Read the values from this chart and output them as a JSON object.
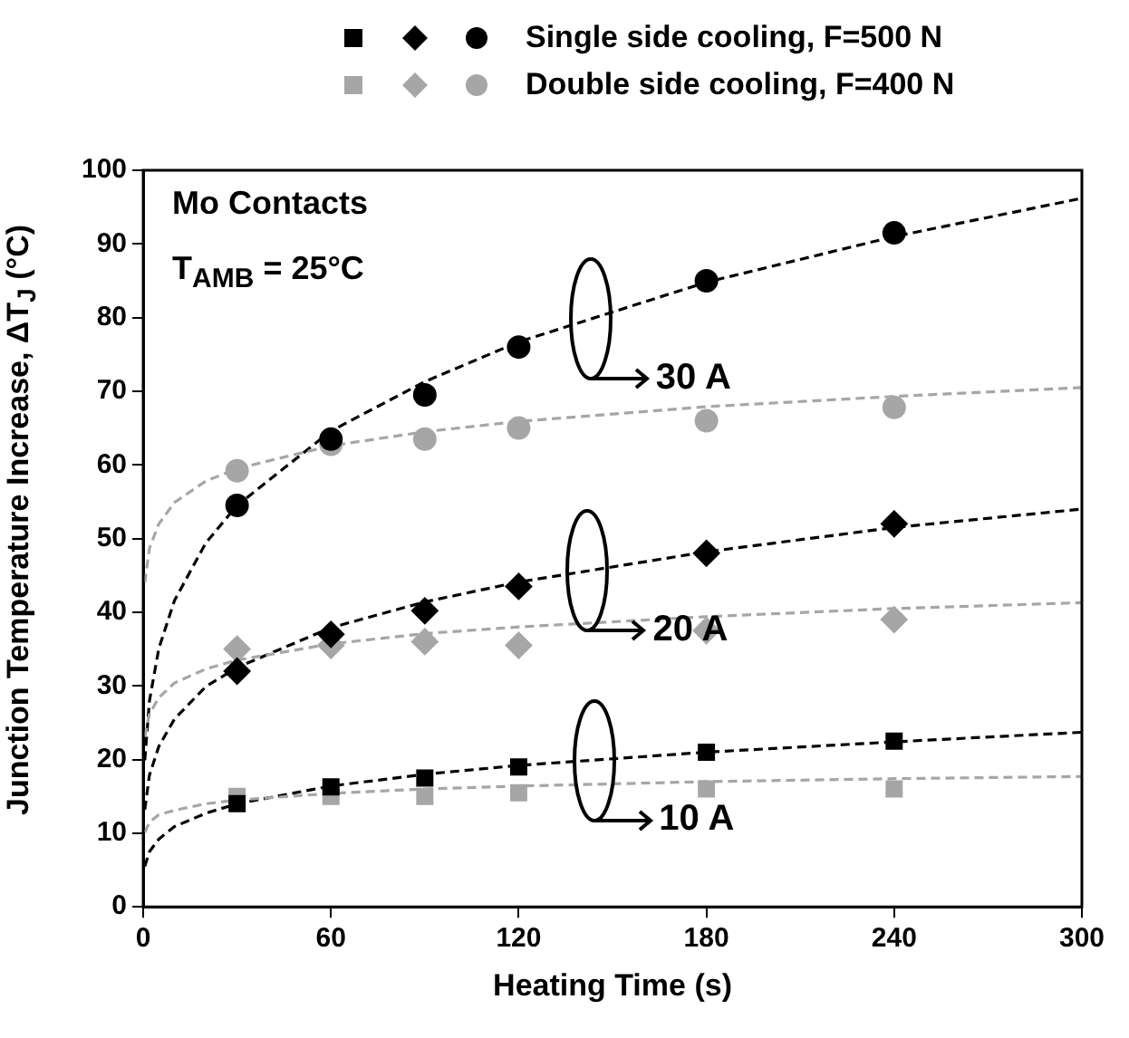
{
  "chart_data": {
    "type": "scatter",
    "xlabel": "Heating Time (s)",
    "ylabel": "Junction Temperature Increase, ΔT$_{J}$ (°C)",
    "xlim": [
      0,
      300
    ],
    "xticks": [
      0,
      60,
      120,
      180,
      240,
      300
    ],
    "ylim": [
      0,
      100
    ],
    "yticks": [
      0,
      10,
      20,
      30,
      40,
      50,
      60,
      70,
      80,
      90,
      100
    ],
    "grid": false,
    "legend": "top",
    "annotations": [
      "Mo Contacts",
      "T$_{AMB}$ = 25°C",
      {
        "text": "30 A",
        "x": 143,
        "y": 79.8
      },
      {
        "text": "20 A",
        "x": 142,
        "y": 45.6
      },
      {
        "text": "10 A",
        "x": 144,
        "y": 19.9
      }
    ],
    "series": [
      {
        "marker": "square",
        "color": "#000000",
        "x": [
          30,
          60,
          90,
          120,
          180,
          240
        ],
        "values": [
          14,
          16.3,
          17.5,
          19,
          21,
          22.5
        ]
      },
      {
        "marker": "diamond",
        "color": "#000000",
        "x": [
          30,
          60,
          90,
          120,
          180,
          240
        ],
        "values": [
          32,
          37,
          40.2,
          43.5,
          48,
          52
        ]
      },
      {
        "name": "Single side cooling, F=500 N",
        "marker": "circle",
        "color": "#000000",
        "x": [
          30,
          60,
          90,
          120,
          180,
          240
        ],
        "values": [
          54.5,
          63.5,
          69.5,
          76,
          85,
          91.5
        ]
      },
      {
        "marker": "square",
        "color": "#a6a6a6",
        "x": [
          30,
          60,
          90,
          120,
          180,
          240
        ],
        "values": [
          15,
          15,
          15,
          15.5,
          16,
          16
        ]
      },
      {
        "marker": "diamond",
        "color": "#a6a6a6",
        "x": [
          30,
          60,
          90,
          120,
          180,
          240
        ],
        "values": [
          35,
          35.5,
          36,
          35.5,
          37.5,
          39
        ]
      },
      {
        "name": "Double side cooling, F=400 N",
        "marker": "circle",
        "color": "#a6a6a6",
        "x": [
          30,
          60,
          90,
          120,
          180,
          240
        ],
        "values": [
          59.2,
          62.8,
          63.5,
          65,
          66,
          67.8
        ]
      },
      {
        "type": "line",
        "line_style": "dashed",
        "marker": "none",
        "color": "#a6a6a6",
        "x": [
          0.5,
          2,
          5,
          10,
          20,
          30,
          60,
          90,
          120,
          180,
          240,
          300
        ],
        "values": [
          44.0,
          48.7,
          52.0,
          54.9,
          57.8,
          59.5,
          62.6,
          64.5,
          65.9,
          67.9,
          69.3,
          70.5
        ]
      },
      {
        "type": "line",
        "line_style": "dashed",
        "marker": "none",
        "color": "#a6a6a6",
        "x": [
          0.5,
          2,
          5,
          10,
          20,
          30,
          60,
          90,
          120,
          180,
          240,
          300
        ],
        "values": [
          23.1,
          26.2,
          28.4,
          30.4,
          32.3,
          33.5,
          35.7,
          37.1,
          38.0,
          39.4,
          40.5,
          41.3
        ]
      },
      {
        "type": "line",
        "line_style": "dashed",
        "marker": "none",
        "color": "#a6a6a6",
        "x": [
          0.5,
          2,
          5,
          10,
          20,
          30,
          60,
          90,
          120,
          180,
          240,
          300
        ],
        "values": [
          10.1,
          11.5,
          12.5,
          13.1,
          14.0,
          14.5,
          15.4,
          16.0,
          16.4,
          17.0,
          17.4,
          17.7
        ]
      },
      {
        "type": "line",
        "line_style": "dashed",
        "marker": "none",
        "color": "#000000",
        "x": [
          0.5,
          2,
          5,
          10,
          20,
          30,
          60,
          90,
          120,
          180,
          240,
          300
        ],
        "values": [
          19.9,
          28.0,
          35.1,
          41.6,
          49.4,
          54.5,
          64.6,
          71.3,
          76.7,
          84.8,
          91.0,
          96.2
        ]
      },
      {
        "type": "line",
        "line_style": "dashed",
        "marker": "none",
        "color": "#000000",
        "x": [
          0.5,
          2,
          5,
          10,
          20,
          30,
          60,
          90,
          120,
          180,
          240,
          300
        ],
        "values": [
          13.2,
          17.9,
          21.8,
          25.5,
          29.9,
          32.5,
          37.9,
          41.4,
          44.1,
          48.2,
          51.5,
          54.0
        ]
      },
      {
        "type": "line",
        "line_style": "dashed",
        "marker": "none",
        "color": "#000000",
        "x": [
          0.5,
          2,
          5,
          10,
          20,
          30,
          60,
          90,
          120,
          180,
          240,
          300
        ],
        "values": [
          5.5,
          7.5,
          9.2,
          10.9,
          12.7,
          14.0,
          16.4,
          18.0,
          19.2,
          21.0,
          22.4,
          23.7
        ]
      }
    ]
  }
}
